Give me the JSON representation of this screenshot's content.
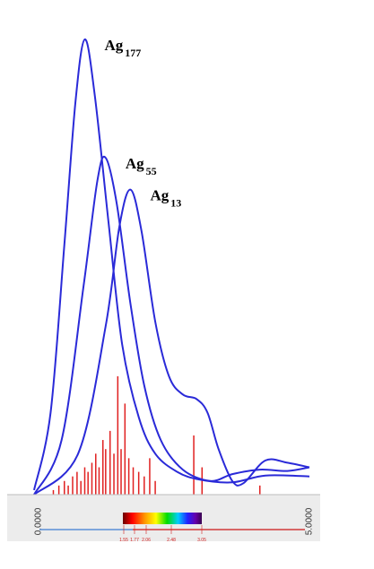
{
  "chart_data": {
    "type": "line",
    "title": "",
    "xlabel": "",
    "ylabel": "",
    "xlim": [
      0,
      5
    ],
    "x_ticks": [
      "0.0000",
      "5.0000"
    ],
    "series": [
      {
        "name": "Ag",
        "subscript": "177",
        "color": "#2a2ad8",
        "points": [
          [
            0.0,
            0.01
          ],
          [
            0.3,
            0.18
          ],
          [
            0.55,
            0.55
          ],
          [
            0.75,
            0.86
          ],
          [
            0.92,
            1.0
          ],
          [
            1.1,
            0.88
          ],
          [
            1.35,
            0.6
          ],
          [
            1.6,
            0.33
          ],
          [
            1.9,
            0.17
          ],
          [
            2.2,
            0.09
          ],
          [
            2.6,
            0.05
          ],
          [
            3.0,
            0.033
          ],
          [
            3.6,
            0.027
          ],
          [
            4.2,
            0.042
          ],
          [
            5.0,
            0.04
          ]
        ]
      },
      {
        "name": "Ag",
        "subscript": "55",
        "color": "#2a2ad8",
        "points": [
          [
            0.0,
            0.0
          ],
          [
            0.5,
            0.12
          ],
          [
            0.9,
            0.46
          ],
          [
            1.15,
            0.69
          ],
          [
            1.3,
            0.74
          ],
          [
            1.5,
            0.64
          ],
          [
            1.75,
            0.42
          ],
          [
            2.0,
            0.24
          ],
          [
            2.3,
            0.12
          ],
          [
            2.7,
            0.055
          ],
          [
            3.2,
            0.03
          ],
          [
            3.6,
            0.045
          ],
          [
            4.1,
            0.055
          ],
          [
            4.6,
            0.052
          ],
          [
            5.0,
            0.06
          ]
        ]
      },
      {
        "name": "Ag",
        "subscript": "13",
        "color": "#2a2ad8",
        "points": [
          [
            0.0,
            0.0
          ],
          [
            0.8,
            0.09
          ],
          [
            1.3,
            0.37
          ],
          [
            1.55,
            0.59
          ],
          [
            1.75,
            0.67
          ],
          [
            1.95,
            0.58
          ],
          [
            2.2,
            0.38
          ],
          [
            2.45,
            0.26
          ],
          [
            2.7,
            0.22
          ],
          [
            2.95,
            0.21
          ],
          [
            3.15,
            0.18
          ],
          [
            3.35,
            0.1
          ],
          [
            3.6,
            0.03
          ],
          [
            3.8,
            0.025
          ],
          [
            4.2,
            0.075
          ],
          [
            4.6,
            0.07
          ],
          [
            5.0,
            0.06
          ]
        ]
      }
    ],
    "stick_spectrum": {
      "color": "#e02020",
      "sticks": [
        [
          0.35,
          0.01
        ],
        [
          0.45,
          0.02
        ],
        [
          0.55,
          0.03
        ],
        [
          0.62,
          0.02
        ],
        [
          0.7,
          0.04
        ],
        [
          0.78,
          0.05
        ],
        [
          0.85,
          0.03
        ],
        [
          0.92,
          0.06
        ],
        [
          0.98,
          0.05
        ],
        [
          1.05,
          0.07
        ],
        [
          1.12,
          0.09
        ],
        [
          1.18,
          0.06
        ],
        [
          1.25,
          0.12
        ],
        [
          1.3,
          0.1
        ],
        [
          1.38,
          0.14
        ],
        [
          1.45,
          0.09
        ],
        [
          1.52,
          0.26
        ],
        [
          1.58,
          0.1
        ],
        [
          1.65,
          0.2
        ],
        [
          1.72,
          0.08
        ],
        [
          1.8,
          0.06
        ],
        [
          1.9,
          0.05
        ],
        [
          2.0,
          0.04
        ],
        [
          2.1,
          0.08
        ],
        [
          2.2,
          0.03
        ],
        [
          2.9,
          0.13
        ],
        [
          3.05,
          0.06
        ],
        [
          4.1,
          0.02
        ]
      ]
    },
    "color_scale": {
      "ticks": [
        "1.55",
        "1.77",
        "2.06",
        "2.48",
        "3.05"
      ]
    }
  }
}
